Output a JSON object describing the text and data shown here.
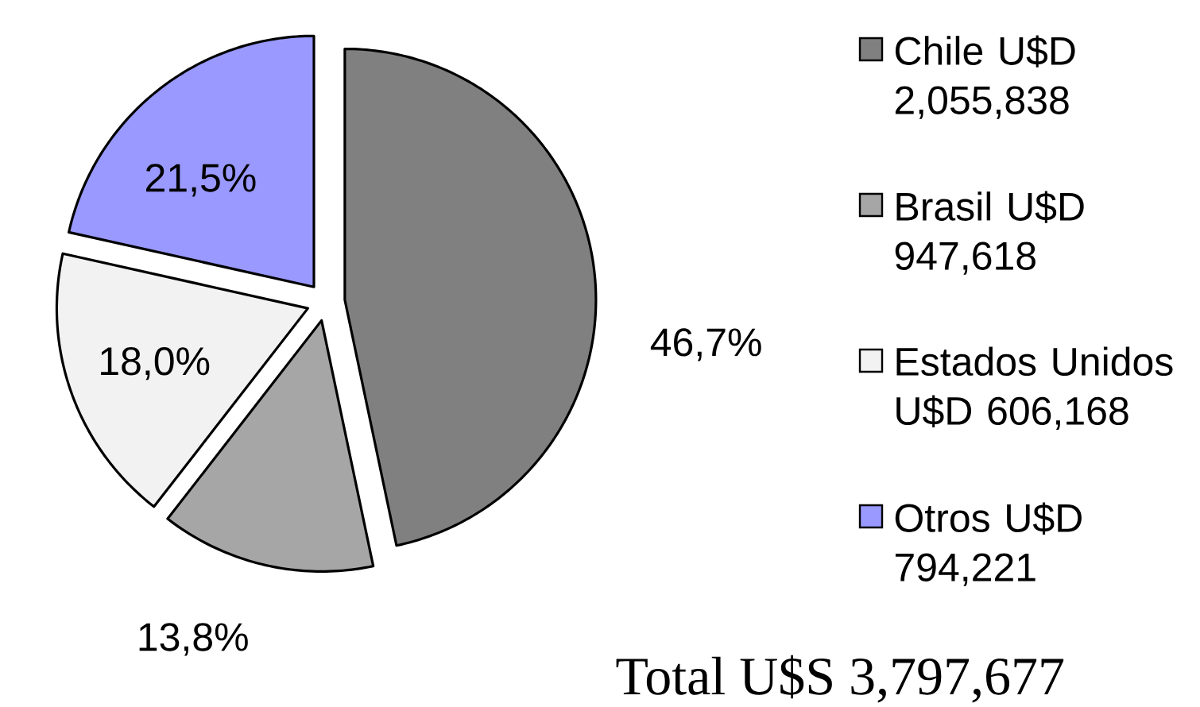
{
  "chart_data": {
    "type": "pie",
    "categories": [
      "Chile U$D 2,055,838",
      "Brasil U$D 947,618",
      "Estados Unidos U$D 606,168",
      "Otros U$D 794,221"
    ],
    "values": [
      46.7,
      13.8,
      18.0,
      21.5
    ],
    "colors": [
      "#808080",
      "#a6a6a6",
      "#f2f2f2",
      "#9999ff"
    ],
    "value_labels": [
      "46,7%",
      "13,8%",
      "18,0%",
      "21,5%"
    ],
    "legend": "right",
    "annotations": [
      "Total U$S 3,797,677"
    ]
  }
}
